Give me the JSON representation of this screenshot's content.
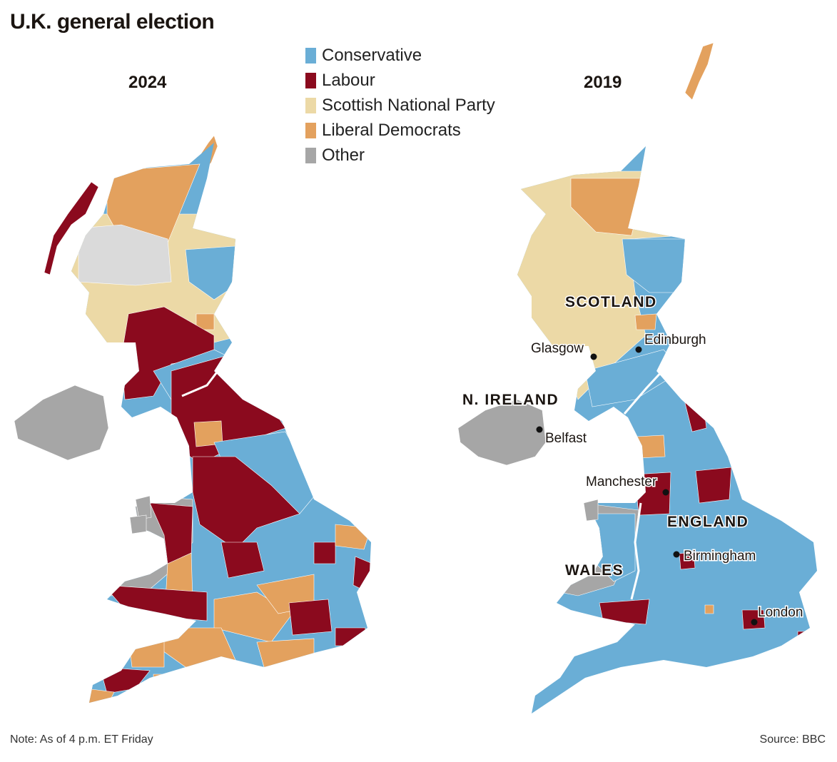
{
  "title": "U.K. general election",
  "maps": [
    {
      "year": "2024"
    },
    {
      "year": "2019"
    }
  ],
  "legend": [
    {
      "label": "Conservative",
      "color": "#6aaed6"
    },
    {
      "label": "Labour",
      "color": "#8b0a1e"
    },
    {
      "label": "Scottish National Party",
      "color": "#ecd9a6"
    },
    {
      "label": "Liberal Democrats",
      "color": "#e3a15e"
    },
    {
      "label": "Other",
      "color": "#a6a6a6"
    }
  ],
  "colors": {
    "conservative": "#6aaed6",
    "labour": "#8b0a1e",
    "snp": "#ecd9a6",
    "libdem": "#e3a15e",
    "other": "#a6a6a6",
    "undeclared": "#dadada",
    "border": "#ffffff"
  },
  "regions": {
    "scotland": "SCOTLAND",
    "n_ireland": "N. IRELAND",
    "england": "ENGLAND",
    "wales": "WALES"
  },
  "cities": {
    "glasgow": "Glasgow",
    "edinburgh": "Edinburgh",
    "belfast": "Belfast",
    "manchester": "Manchester",
    "birmingham": "Birmingham",
    "london": "London"
  },
  "note": "Note: As of 4 p.m. ET Friday",
  "source": "Source: BBC"
}
